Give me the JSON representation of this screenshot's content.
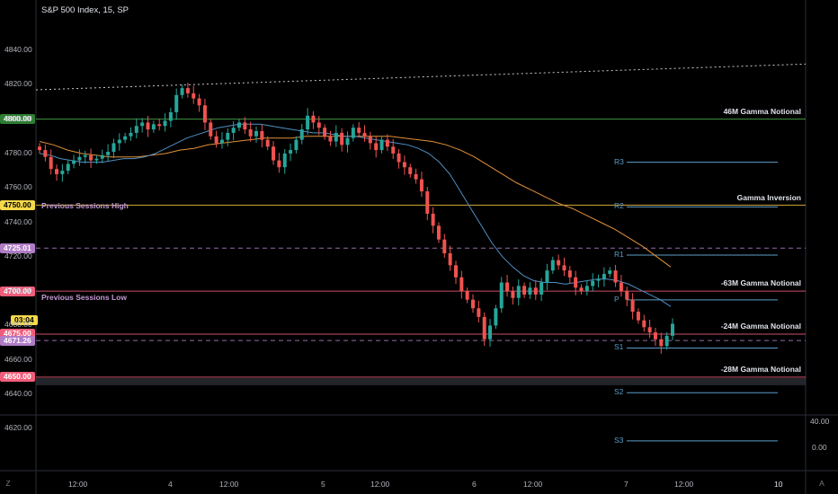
{
  "header": {
    "title": "S&P 500 Index, 15, SP"
  },
  "left_price_tags": [
    {
      "text": "4800.00",
      "bg": "#2e7d32",
      "fg": "#ffffff",
      "price": 4800
    },
    {
      "text": "4750.00",
      "bg": "#f5d94a",
      "fg": "#000000",
      "price": 4750
    },
    {
      "text": "4725.01",
      "bg": "#b07cc6",
      "fg": "#ffffff",
      "price": 4725.01
    },
    {
      "text": "4700.00",
      "bg": "#f05d7a",
      "fg": "#ffffff",
      "price": 4700
    },
    {
      "text": "03:04",
      "bg": "#f5d94a",
      "fg": "#000000",
      "price": 4683
    },
    {
      "text": "4675.00",
      "bg": "#f05d7a",
      "fg": "#ffffff",
      "price": 4675
    },
    {
      "text": "4671.26",
      "bg": "#b07cc6",
      "fg": "#ffffff",
      "price": 4671.26
    },
    {
      "text": "4650.00",
      "bg": "#f05d7a",
      "fg": "#ffffff",
      "price": 4650
    }
  ],
  "gamma_labels": [
    {
      "text": "46M Gamma Notional",
      "price": 4804
    },
    {
      "text": "Gamma Inversion",
      "price": 4754
    },
    {
      "text": "-63M Gamma Notional",
      "price": 4704
    },
    {
      "text": "-24M Gamma Notional",
      "price": 4679
    },
    {
      "text": "-28M Gamma Notional",
      "price": 4654
    }
  ],
  "pivots": [
    {
      "text": "R3",
      "price": 4777
    },
    {
      "text": "R2",
      "price": 4751
    },
    {
      "text": "R1",
      "price": 4723
    },
    {
      "text": "P",
      "price": 4697
    },
    {
      "text": "S1",
      "price": 4669
    },
    {
      "text": "S2",
      "price": 4643
    },
    {
      "text": "S3",
      "price": 4615
    }
  ],
  "sessions": {
    "high_label": "Previous Sessions High",
    "low_label": "Previous Sessions Low"
  },
  "indicator_axis": {
    "top": "40.00",
    "mid": "0.00"
  },
  "bottom_buttons": {
    "left": "Z",
    "right": "A"
  },
  "chart_data": {
    "type": "candlestick",
    "symbol": "S&P 500 Index",
    "interval": "15",
    "exchange": "SP",
    "y_ticks": [
      4840,
      4820,
      4800,
      4780,
      4760,
      4740,
      4720,
      4700,
      4680,
      4660,
      4640,
      4620
    ],
    "y_tick_labels": [
      "4840.00",
      "4820.00",
      "4800.00",
      "4780.00",
      "4760.00",
      "4740.00",
      "4720.00",
      "4700.00",
      "4680.00",
      "4660.00",
      "4640.00",
      "4620.00"
    ],
    "ylim": [
      4606,
      4850
    ],
    "x_labels": [
      "12:00",
      "4",
      "12:00",
      "5",
      "12:00",
      "6",
      "12:00",
      "7",
      "12:00",
      "10"
    ],
    "horizontal_levels": [
      {
        "price": 4800,
        "color": "#4caf50",
        "style": "solid"
      },
      {
        "price": 4750,
        "color": "#f5c542",
        "style": "solid"
      },
      {
        "price": 4725.01,
        "color": "#b07cc6",
        "style": "dashed"
      },
      {
        "price": 4700,
        "color": "#f05d7a",
        "style": "solid"
      },
      {
        "price": 4675,
        "color": "#f05d7a",
        "style": "solid"
      },
      {
        "price": 4671.26,
        "color": "#b07cc6",
        "style": "dashed"
      },
      {
        "price": 4650,
        "color": "#f05d7a",
        "style": "solid"
      }
    ],
    "trendline": {
      "from": 4817,
      "to": 4832,
      "style": "dotted"
    },
    "closes": [
      4782,
      4778,
      4771,
      4768,
      4770,
      4774,
      4776,
      4778,
      4779,
      4776,
      4777,
      4779,
      4781,
      4786,
      4788,
      4790,
      4792,
      4796,
      4798,
      4794,
      4797,
      4796,
      4799,
      4804,
      4814,
      4818,
      4815,
      4812,
      4808,
      4798,
      4790,
      4786,
      4788,
      4792,
      4795,
      4798,
      4794,
      4790,
      4793,
      4788,
      4784,
      4776,
      4772,
      4780,
      4782,
      4788,
      4794,
      4802,
      4798,
      4795,
      4790,
      4787,
      4792,
      4785,
      4789,
      4795,
      4792,
      4790,
      4786,
      4782,
      4788,
      4784,
      4780,
      4775,
      4772,
      4768,
      4765,
      4758,
      4745,
      4738,
      4730,
      4722,
      4715,
      4708,
      4700,
      4695,
      4690,
      4685,
      4672,
      4680,
      4690,
      4705,
      4700,
      4696,
      4703,
      4698,
      4702,
      4698,
      4705,
      4712,
      4718,
      4715,
      4712,
      4708,
      4702,
      4700,
      4703,
      4706,
      4707,
      4710,
      4712,
      4705,
      4700,
      4695,
      4688,
      4683,
      4679,
      4676,
      4672,
      4668,
      4674,
      4681
    ],
    "ma_fast": [
      4780,
      4779,
      4777,
      4776,
      4775,
      4775,
      4775,
      4776,
      4777,
      4777,
      4778,
      4780,
      4783,
      4786,
      4789,
      4791,
      4793,
      4795,
      4796,
      4797,
      4797,
      4797,
      4796,
      4795,
      4794,
      4793,
      4792,
      4792,
      4791,
      4790,
      4790,
      4789,
      4788,
      4787,
      4786,
      4785,
      4783,
      4780,
      4775,
      4768,
      4758,
      4748,
      4738,
      4728,
      4720,
      4714,
      4709,
      4706,
      4705,
      4705,
      4704,
      4705,
      4706,
      4707,
      4707,
      4706,
      4704,
      4701,
      4698,
      4695,
      4691
    ],
    "ma_slow": [
      4787,
      4785,
      4782,
      4780,
      4779,
      4778,
      4778,
      4778,
      4779,
      4780,
      4782,
      4783,
      4785,
      4786,
      4787,
      4788,
      4789,
      4789,
      4789,
      4790,
      4790,
      4790,
      4790,
      4790,
      4790,
      4790,
      4789,
      4788,
      4787,
      4785,
      4782,
      4778,
      4773,
      4768,
      4763,
      4759,
      4755,
      4751,
      4748,
      4744,
      4740,
      4736,
      4731,
      4726,
      4720,
      4714
    ]
  }
}
